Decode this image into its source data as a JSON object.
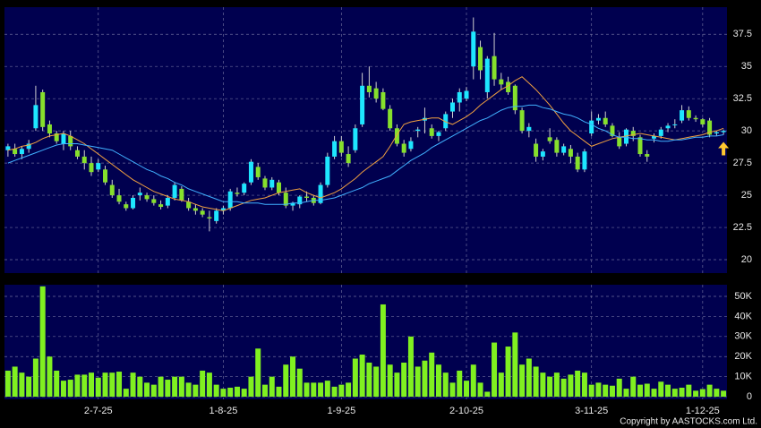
{
  "chart_data": {
    "type": "candlestick",
    "categories": [
      null,
      null,
      null,
      null,
      null,
      null,
      null,
      null,
      null,
      null,
      null,
      null,
      null,
      "2-7-25",
      null,
      null,
      null,
      null,
      null,
      null,
      null,
      null,
      null,
      null,
      null,
      null,
      null,
      null,
      null,
      null,
      null,
      "1-8-25",
      null,
      null,
      null,
      null,
      null,
      null,
      null,
      null,
      null,
      null,
      null,
      null,
      null,
      null,
      null,
      null,
      "1-9-25",
      null,
      null,
      null,
      null,
      null,
      null,
      null,
      null,
      null,
      null,
      null,
      null,
      null,
      null,
      null,
      null,
      null,
      "2-10-25",
      null,
      null,
      null,
      null,
      null,
      null,
      null,
      null,
      null,
      null,
      null,
      null,
      null,
      null,
      null,
      null,
      null,
      "3-11-25",
      null,
      null,
      null,
      null,
      null,
      null,
      null,
      null,
      null,
      null,
      null,
      null,
      null,
      null,
      null,
      "1-12-25",
      null,
      null,
      null
    ],
    "candles": [
      [
        28.5,
        29,
        28,
        28.8
      ],
      [
        28.6,
        29,
        28,
        28.2
      ],
      [
        28.2,
        28.8,
        27.8,
        28.6
      ],
      [
        28.6,
        29.3,
        28.3,
        29
      ],
      [
        30.2,
        33.5,
        30,
        32
      ],
      [
        33,
        33.2,
        30,
        30.3
      ],
      [
        30.5,
        30.8,
        29.5,
        29.8
      ],
      [
        29.8,
        30,
        29,
        29.2
      ],
      [
        29,
        30,
        28.5,
        29.8
      ],
      [
        29.6,
        30,
        28.5,
        28.8
      ],
      [
        28.5,
        28.8,
        27.8,
        28
      ],
      [
        28,
        28.5,
        27,
        27.5
      ],
      [
        27.5,
        28,
        26.5,
        26.8
      ],
      [
        27,
        27.8,
        26.8,
        27.5
      ],
      [
        27,
        27.3,
        25.8,
        26
      ],
      [
        25.8,
        26.2,
        24.8,
        25
      ],
      [
        25,
        25.5,
        24.3,
        24.5
      ],
      [
        24.3,
        24.5,
        23.8,
        24
      ],
      [
        24,
        25,
        23.9,
        24.8
      ],
      [
        25,
        25.6,
        24.6,
        25.2
      ],
      [
        25,
        25.2,
        24.5,
        24.7
      ],
      [
        24.7,
        25,
        24.2,
        24.4
      ],
      [
        24.3,
        24.6,
        23.9,
        24.1
      ],
      [
        24.2,
        25,
        24,
        24.8
      ],
      [
        24.8,
        26,
        24.6,
        25.8
      ],
      [
        25.5,
        25.7,
        24.5,
        24.6
      ],
      [
        24.5,
        24.8,
        23.8,
        24
      ],
      [
        24,
        24.3,
        23.5,
        23.8
      ],
      [
        23.8,
        24,
        23.3,
        23.5
      ],
      [
        23.3,
        23.8,
        22.2,
        23.2
      ],
      [
        23,
        24,
        22.8,
        23.8
      ],
      [
        23.8,
        24.2,
        23.5,
        24
      ],
      [
        24,
        25.5,
        23.8,
        25.3
      ],
      [
        25.2,
        25.6,
        24.9,
        25.1
      ],
      [
        25.2,
        26,
        25,
        25.9
      ],
      [
        26,
        27.8,
        25.8,
        27.6
      ],
      [
        27.2,
        27.5,
        26.2,
        26.4
      ],
      [
        26.3,
        26.5,
        25.4,
        25.6
      ],
      [
        25.6,
        26.4,
        25.4,
        26.2
      ],
      [
        26,
        26.2,
        25,
        25.2
      ],
      [
        25.2,
        25.6,
        24,
        24.2
      ],
      [
        24.2,
        24.5,
        23.8,
        24.4
      ],
      [
        24.3,
        25,
        24,
        24.9
      ],
      [
        24.9,
        25.3,
        24.5,
        24.8
      ],
      [
        24.8,
        25,
        24.2,
        24.4
      ],
      [
        24.4,
        26,
        24.3,
        25.8
      ],
      [
        25.8,
        28.3,
        25.6,
        28
      ],
      [
        28,
        29.6,
        27.8,
        29.2
      ],
      [
        29.2,
        29.6,
        28,
        28.3
      ],
      [
        28.2,
        28.8,
        27.2,
        27.5
      ],
      [
        28.5,
        30.5,
        28.3,
        30.2
      ],
      [
        30.5,
        34.5,
        30.3,
        33.5
      ],
      [
        33.5,
        35,
        32.6,
        33
      ],
      [
        33.3,
        33.8,
        32.2,
        32.5
      ],
      [
        33,
        33.3,
        31.6,
        31.7
      ],
      [
        31.7,
        32,
        30,
        30.2
      ],
      [
        30.2,
        30.5,
        28.8,
        29
      ],
      [
        29,
        29.3,
        28,
        28.3
      ],
      [
        28.6,
        29.5,
        28.4,
        29.2
      ],
      [
        30,
        30.3,
        29.5,
        30.1
      ],
      [
        30.8,
        31.8,
        29.8,
        31
      ],
      [
        30.2,
        30.5,
        29.4,
        29.6
      ],
      [
        29.6,
        30,
        29.2,
        29.9
      ],
      [
        30.2,
        31.5,
        30,
        31.3
      ],
      [
        31.5,
        32.5,
        31,
        32.2
      ],
      [
        32.2,
        33.3,
        31.5,
        33
      ],
      [
        32.5,
        33.4,
        32.3,
        33.1
      ],
      [
        35,
        38.8,
        34,
        37.7
      ],
      [
        36.5,
        37,
        34,
        34.7
      ],
      [
        33,
        35.8,
        32.5,
        35.6
      ],
      [
        35.8,
        37.6,
        33.5,
        34
      ],
      [
        34,
        34.5,
        33.2,
        33.6
      ],
      [
        33.8,
        34.2,
        32.8,
        33
      ],
      [
        33.5,
        33.6,
        31.3,
        31.6
      ],
      [
        31.6,
        31.8,
        29.8,
        30
      ],
      [
        30,
        30.6,
        29.5,
        30.3
      ],
      [
        29,
        29.4,
        27.6,
        28
      ],
      [
        28,
        28.6,
        27.7,
        28.4
      ],
      [
        29.5,
        30.2,
        29,
        29.2
      ],
      [
        29.3,
        29.5,
        28,
        28.3
      ],
      [
        28.3,
        29,
        28.1,
        28.8
      ],
      [
        28.6,
        28.9,
        27.5,
        28
      ],
      [
        28,
        28.3,
        26.8,
        27
      ],
      [
        27,
        28.6,
        26.8,
        28.4
      ],
      [
        29.8,
        31.5,
        29.6,
        30.8
      ],
      [
        30.8,
        31.3,
        30.5,
        31
      ],
      [
        31,
        31.5,
        30.3,
        30.5
      ],
      [
        30.4,
        30.6,
        29.5,
        29.6
      ],
      [
        29.5,
        29.9,
        28.6,
        28.8
      ],
      [
        29,
        30.2,
        28.8,
        30.1
      ],
      [
        30,
        30.3,
        29.2,
        29.6
      ],
      [
        29.5,
        29.7,
        28,
        28.2
      ],
      [
        28.2,
        28.5,
        27.6,
        28
      ],
      [
        29.4,
        29.8,
        29.1,
        29.6
      ],
      [
        29.6,
        30.3,
        29.4,
        30.1
      ],
      [
        30.2,
        30.6,
        29.9,
        30.4
      ],
      [
        30.5,
        30.9,
        30.2,
        30.5
      ],
      [
        30.8,
        32,
        30.6,
        31.6
      ],
      [
        31.6,
        31.9,
        30.8,
        31
      ],
      [
        31,
        31.2,
        30.7,
        30.9
      ],
      [
        30.9,
        31,
        30.3,
        30.5
      ],
      [
        30.8,
        31,
        29.5,
        29.7
      ],
      [
        29.8,
        30,
        29.6,
        29.9
      ],
      [
        29.9,
        30.1,
        29.7,
        30
      ]
    ],
    "up_color": "#1ee6ff",
    "down_color": "#86e02c",
    "wick_color": "#d0d0d0",
    "moving_averages": [
      {
        "color": "#f0a040",
        "values": [
          28.5,
          28.6,
          28.8,
          28.9,
          29.1,
          29.4,
          29.6,
          29.7,
          29.8,
          29.6,
          29.3,
          29,
          28.6,
          28.2,
          27.8,
          27.4,
          27,
          26.6,
          26.2,
          25.9,
          25.6,
          25.3,
          25.1,
          24.9,
          24.7,
          24.6,
          24.5,
          24.3,
          24.1,
          24,
          23.9,
          23.8,
          24,
          24.2,
          24.4,
          24.6,
          24.7,
          24.8,
          25,
          25.2,
          25.3,
          25.4,
          25.5,
          25.2,
          25,
          24.8,
          25,
          25.2,
          25.5,
          25.9,
          26.3,
          26.8,
          27.2,
          27.6,
          28,
          28.8,
          29.7,
          30.5,
          30.7,
          30.8,
          30.9,
          31,
          31,
          30.7,
          30.5,
          30.8,
          31.1,
          31.5,
          32,
          32.4,
          32.8,
          33.2,
          33.5,
          33.9,
          34.2,
          33.7,
          33.2,
          32.6,
          32,
          31.3,
          30.6,
          30,
          29.6,
          29.2,
          28.8,
          29,
          29.2,
          29.4,
          29.5,
          29.6,
          29.7,
          29.8,
          29.7,
          29.6,
          29.5,
          29.4,
          29.3,
          29.4,
          29.5,
          29.6,
          29.7,
          29.9,
          30,
          30.2
        ]
      },
      {
        "color": "#40b0ff",
        "values": [
          27.5,
          27.7,
          27.9,
          28.1,
          28.3,
          28.5,
          28.7,
          28.9,
          29,
          29,
          29,
          28.9,
          28.8,
          28.7,
          28.6,
          28.5,
          28.2,
          27.9,
          27.6,
          27.3,
          27,
          26.8,
          26.5,
          26.3,
          26,
          25.8,
          25.5,
          25.3,
          25.1,
          24.9,
          24.7,
          24.5,
          24.5,
          24.5,
          24.4,
          24.4,
          24.4,
          24.3,
          24.3,
          24.3,
          24.3,
          24.4,
          24.4,
          24.5,
          24.6,
          24.6,
          24.7,
          24.8,
          25,
          25.2,
          25.4,
          25.6,
          25.9,
          26.1,
          26.3,
          26.5,
          26.9,
          27.3,
          27.7,
          28,
          28.3,
          28.7,
          29,
          29.3,
          29.6,
          29.9,
          30.2,
          30.5,
          30.8,
          31,
          31.3,
          31.6,
          31.8,
          31.9,
          31.9,
          32,
          32,
          31.8,
          31.7,
          31.5,
          31.3,
          31.2,
          31,
          30.7,
          30.5,
          30.2,
          30,
          29.7,
          29.5,
          29.5,
          29.4,
          29.4,
          29.3,
          29.3,
          29.2,
          29.2,
          29.3,
          29.3,
          29.4,
          29.5,
          29.5,
          29.6,
          29.6,
          29.7
        ]
      }
    ],
    "ylim": [
      18.96,
      39.6
    ],
    "yticks": [
      20,
      22.5,
      25,
      27.5,
      30,
      32.5,
      35,
      37.5
    ],
    "grid": true,
    "volume": {
      "color": "#80f020",
      "ylim": [
        -1300,
        55800
      ],
      "yticks": [
        0,
        {
          "value": 10000,
          "label": "10K"
        },
        {
          "value": 20000,
          "label": "20K"
        },
        {
          "value": 30000,
          "label": "30K"
        },
        {
          "value": 40000,
          "label": "40K"
        },
        {
          "value": 50000,
          "label": "50K"
        }
      ],
      "values": [
        13000,
        15000,
        12000,
        10000,
        19000,
        55000,
        20000,
        13000,
        8000,
        8500,
        11000,
        11000,
        12000,
        9500,
        12000,
        12000,
        12500,
        4000,
        12000,
        10000,
        7000,
        6000,
        10000,
        8500,
        10000,
        10000,
        7000,
        6000,
        13000,
        12000,
        6000,
        4000,
        4500,
        5000,
        4000,
        10000,
        24000,
        6000,
        10000,
        5000,
        16000,
        20000,
        14000,
        7000,
        7000,
        7000,
        8000,
        5000,
        6000,
        7000,
        19000,
        21000,
        17000,
        15000,
        46000,
        16000,
        12000,
        17000,
        30000,
        15000,
        18000,
        22000,
        16000,
        12000,
        7000,
        13000,
        8000,
        16000,
        7000,
        2500,
        27000,
        12000,
        25000,
        32000,
        16000,
        19000,
        15000,
        12000,
        10000,
        12000,
        9000,
        11000,
        13000,
        12000,
        6000,
        7000,
        6000,
        5500,
        9000,
        4000,
        10000,
        6000,
        6500,
        4000,
        7500,
        6000,
        4000,
        4500,
        6000,
        3000,
        3800,
        6000,
        4000,
        3000
      ]
    },
    "copyright": "Copyright by AASTOCKS.com Ltd."
  }
}
